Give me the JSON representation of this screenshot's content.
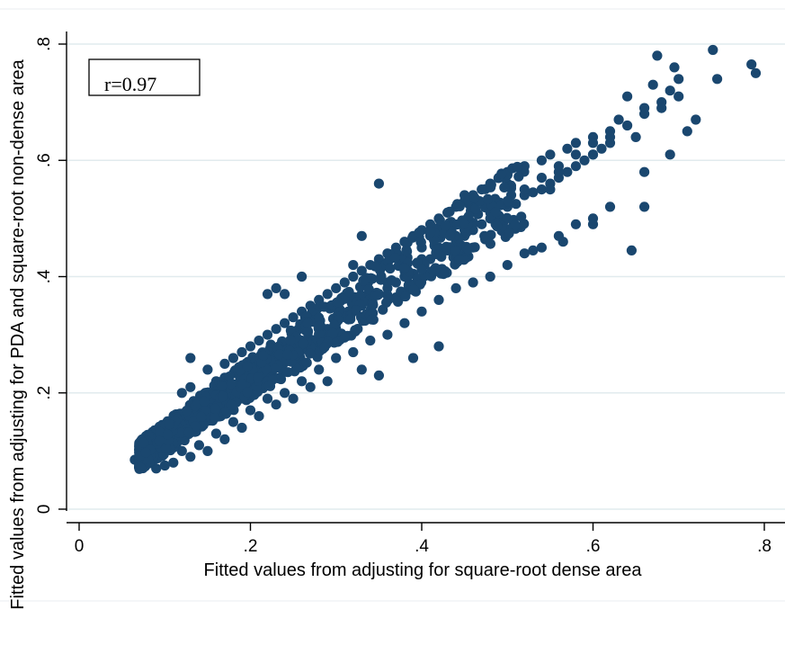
{
  "chart_data": {
    "type": "scatter",
    "xlabel": "Fitted values from adjusting for square-root dense area",
    "ylabel": "Fitted values from adjusting for PDA and square-root non-dense area",
    "xlim": [
      0,
      0.8
    ],
    "ylim": [
      0,
      0.8
    ],
    "x_ticks": [
      "0",
      ".2",
      ".4",
      ".6",
      ".8"
    ],
    "y_ticks": [
      "0",
      ".2",
      ".4",
      ".6",
      ".8"
    ],
    "grid": "horizontal",
    "annotation": "r=0.97",
    "marker_color": "#1a476f",
    "series": [
      {
        "points": [
          [
            0.065,
            0.085
          ],
          [
            0.07,
            0.09
          ],
          [
            0.075,
            0.08
          ],
          [
            0.08,
            0.1
          ],
          [
            0.085,
            0.095
          ],
          [
            0.09,
            0.11
          ],
          [
            0.095,
            0.1
          ],
          [
            0.1,
            0.12
          ],
          [
            0.105,
            0.11
          ],
          [
            0.11,
            0.125
          ],
          [
            0.115,
            0.13
          ],
          [
            0.12,
            0.14
          ],
          [
            0.125,
            0.13
          ],
          [
            0.13,
            0.15
          ],
          [
            0.135,
            0.145
          ],
          [
            0.14,
            0.16
          ],
          [
            0.145,
            0.155
          ],
          [
            0.15,
            0.17
          ],
          [
            0.155,
            0.165
          ],
          [
            0.16,
            0.18
          ],
          [
            0.165,
            0.175
          ],
          [
            0.17,
            0.19
          ],
          [
            0.175,
            0.185
          ],
          [
            0.18,
            0.2
          ],
          [
            0.185,
            0.195
          ],
          [
            0.19,
            0.21
          ],
          [
            0.195,
            0.205
          ],
          [
            0.2,
            0.22
          ],
          [
            0.205,
            0.215
          ],
          [
            0.21,
            0.23
          ],
          [
            0.215,
            0.225
          ],
          [
            0.22,
            0.24
          ],
          [
            0.225,
            0.235
          ],
          [
            0.23,
            0.25
          ],
          [
            0.235,
            0.245
          ],
          [
            0.24,
            0.26
          ],
          [
            0.245,
            0.255
          ],
          [
            0.25,
            0.27
          ],
          [
            0.255,
            0.265
          ],
          [
            0.26,
            0.28
          ],
          [
            0.265,
            0.275
          ],
          [
            0.27,
            0.29
          ],
          [
            0.275,
            0.285
          ],
          [
            0.28,
            0.3
          ],
          [
            0.285,
            0.295
          ],
          [
            0.29,
            0.31
          ],
          [
            0.295,
            0.305
          ],
          [
            0.3,
            0.32
          ],
          [
            0.31,
            0.33
          ],
          [
            0.32,
            0.34
          ],
          [
            0.33,
            0.35
          ],
          [
            0.34,
            0.355
          ],
          [
            0.35,
            0.37
          ],
          [
            0.36,
            0.38
          ],
          [
            0.37,
            0.39
          ],
          [
            0.38,
            0.4
          ],
          [
            0.39,
            0.405
          ],
          [
            0.4,
            0.42
          ],
          [
            0.41,
            0.43
          ],
          [
            0.42,
            0.44
          ],
          [
            0.43,
            0.445
          ],
          [
            0.44,
            0.46
          ],
          [
            0.45,
            0.47
          ],
          [
            0.46,
            0.48
          ],
          [
            0.47,
            0.49
          ],
          [
            0.48,
            0.5
          ],
          [
            0.49,
            0.505
          ],
          [
            0.5,
            0.52
          ],
          [
            0.51,
            0.525
          ],
          [
            0.52,
            0.54
          ],
          [
            0.53,
            0.545
          ],
          [
            0.54,
            0.55
          ],
          [
            0.55,
            0.56
          ],
          [
            0.56,
            0.57
          ],
          [
            0.57,
            0.58
          ],
          [
            0.58,
            0.59
          ],
          [
            0.59,
            0.6
          ],
          [
            0.6,
            0.61
          ],
          [
            0.61,
            0.62
          ],
          [
            0.62,
            0.63
          ],
          [
            0.12,
            0.2
          ],
          [
            0.13,
            0.21
          ],
          [
            0.15,
            0.24
          ],
          [
            0.16,
            0.22
          ],
          [
            0.17,
            0.25
          ],
          [
            0.18,
            0.26
          ],
          [
            0.19,
            0.27
          ],
          [
            0.2,
            0.28
          ],
          [
            0.21,
            0.29
          ],
          [
            0.22,
            0.3
          ],
          [
            0.23,
            0.31
          ],
          [
            0.24,
            0.32
          ],
          [
            0.25,
            0.33
          ],
          [
            0.26,
            0.34
          ],
          [
            0.27,
            0.35
          ],
          [
            0.28,
            0.36
          ],
          [
            0.29,
            0.37
          ],
          [
            0.3,
            0.38
          ],
          [
            0.31,
            0.39
          ],
          [
            0.32,
            0.4
          ],
          [
            0.33,
            0.41
          ],
          [
            0.34,
            0.42
          ],
          [
            0.35,
            0.43
          ],
          [
            0.36,
            0.44
          ],
          [
            0.37,
            0.45
          ],
          [
            0.38,
            0.46
          ],
          [
            0.39,
            0.47
          ],
          [
            0.4,
            0.48
          ],
          [
            0.41,
            0.49
          ],
          [
            0.42,
            0.5
          ],
          [
            0.43,
            0.51
          ],
          [
            0.44,
            0.52
          ],
          [
            0.45,
            0.53
          ],
          [
            0.46,
            0.54
          ],
          [
            0.47,
            0.55
          ],
          [
            0.48,
            0.56
          ],
          [
            0.49,
            0.57
          ],
          [
            0.5,
            0.58
          ],
          [
            0.52,
            0.59
          ],
          [
            0.54,
            0.6
          ],
          [
            0.55,
            0.61
          ],
          [
            0.57,
            0.62
          ],
          [
            0.58,
            0.63
          ],
          [
            0.6,
            0.64
          ],
          [
            0.12,
            0.1
          ],
          [
            0.14,
            0.11
          ],
          [
            0.16,
            0.13
          ],
          [
            0.18,
            0.15
          ],
          [
            0.2,
            0.17
          ],
          [
            0.22,
            0.19
          ],
          [
            0.24,
            0.2
          ],
          [
            0.26,
            0.22
          ],
          [
            0.28,
            0.24
          ],
          [
            0.3,
            0.26
          ],
          [
            0.32,
            0.27
          ],
          [
            0.34,
            0.29
          ],
          [
            0.36,
            0.3
          ],
          [
            0.38,
            0.32
          ],
          [
            0.4,
            0.34
          ],
          [
            0.42,
            0.36
          ],
          [
            0.44,
            0.38
          ],
          [
            0.46,
            0.39
          ],
          [
            0.48,
            0.4
          ],
          [
            0.5,
            0.42
          ],
          [
            0.52,
            0.44
          ],
          [
            0.54,
            0.45
          ],
          [
            0.56,
            0.47
          ],
          [
            0.58,
            0.49
          ],
          [
            0.6,
            0.5
          ],
          [
            0.62,
            0.52
          ],
          [
            0.13,
            0.26
          ],
          [
            0.22,
            0.37
          ],
          [
            0.23,
            0.38
          ],
          [
            0.24,
            0.37
          ],
          [
            0.26,
            0.4
          ],
          [
            0.32,
            0.42
          ],
          [
            0.33,
            0.47
          ],
          [
            0.35,
            0.56
          ],
          [
            0.4,
            0.45
          ],
          [
            0.42,
            0.48
          ],
          [
            0.45,
            0.54
          ],
          [
            0.5,
            0.56
          ],
          [
            0.55,
            0.55
          ],
          [
            0.56,
            0.58
          ],
          [
            0.6,
            0.61
          ],
          [
            0.62,
            0.65
          ],
          [
            0.63,
            0.67
          ],
          [
            0.64,
            0.71
          ],
          [
            0.65,
            0.64
          ],
          [
            0.66,
            0.69
          ],
          [
            0.67,
            0.73
          ],
          [
            0.68,
            0.7
          ],
          [
            0.69,
            0.72
          ],
          [
            0.7,
            0.74
          ],
          [
            0.71,
            0.65
          ],
          [
            0.72,
            0.67
          ],
          [
            0.74,
            0.79
          ],
          [
            0.745,
            0.74
          ],
          [
            0.785,
            0.765
          ],
          [
            0.79,
            0.75
          ],
          [
            0.675,
            0.78
          ],
          [
            0.695,
            0.76
          ],
          [
            0.7,
            0.71
          ],
          [
            0.66,
            0.58
          ],
          [
            0.69,
            0.61
          ],
          [
            0.66,
            0.52
          ],
          [
            0.645,
            0.445
          ],
          [
            0.6,
            0.49
          ],
          [
            0.565,
            0.46
          ],
          [
            0.53,
            0.445
          ],
          [
            0.42,
            0.28
          ],
          [
            0.39,
            0.26
          ],
          [
            0.35,
            0.23
          ],
          [
            0.33,
            0.24
          ],
          [
            0.29,
            0.22
          ],
          [
            0.27,
            0.21
          ],
          [
            0.25,
            0.19
          ],
          [
            0.23,
            0.18
          ],
          [
            0.21,
            0.16
          ],
          [
            0.19,
            0.14
          ],
          [
            0.17,
            0.12
          ],
          [
            0.15,
            0.1
          ],
          [
            0.13,
            0.09
          ],
          [
            0.11,
            0.08
          ],
          [
            0.1,
            0.075
          ],
          [
            0.09,
            0.07
          ],
          [
            0.075,
            0.085
          ],
          [
            0.08,
            0.11
          ],
          [
            0.09,
            0.12
          ],
          [
            0.1,
            0.13
          ],
          [
            0.11,
            0.14
          ],
          [
            0.12,
            0.15
          ],
          [
            0.14,
            0.17
          ],
          [
            0.16,
            0.19
          ],
          [
            0.18,
            0.21
          ],
          [
            0.2,
            0.23
          ],
          [
            0.22,
            0.25
          ],
          [
            0.24,
            0.27
          ],
          [
            0.26,
            0.29
          ],
          [
            0.28,
            0.31
          ],
          [
            0.3,
            0.33
          ],
          [
            0.32,
            0.35
          ],
          [
            0.34,
            0.37
          ],
          [
            0.36,
            0.39
          ],
          [
            0.38,
            0.41
          ],
          [
            0.4,
            0.43
          ],
          [
            0.42,
            0.45
          ],
          [
            0.44,
            0.47
          ],
          [
            0.46,
            0.49
          ],
          [
            0.48,
            0.51
          ],
          [
            0.5,
            0.53
          ],
          [
            0.52,
            0.55
          ],
          [
            0.54,
            0.57
          ],
          [
            0.56,
            0.59
          ],
          [
            0.58,
            0.61
          ],
          [
            0.6,
            0.63
          ],
          [
            0.62,
            0.64
          ],
          [
            0.64,
            0.66
          ],
          [
            0.66,
            0.68
          ],
          [
            0.68,
            0.69
          ]
        ]
      }
    ]
  }
}
